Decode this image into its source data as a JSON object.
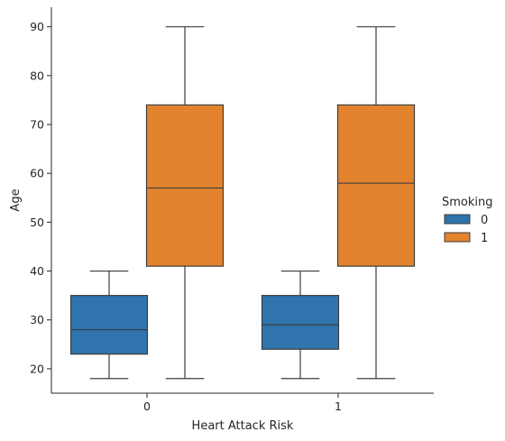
{
  "chart_data": {
    "type": "boxplot",
    "xlabel": "Heart Attack Risk",
    "ylabel": "Age",
    "categories": [
      "0",
      "1"
    ],
    "yticks": [
      20,
      30,
      40,
      50,
      60,
      70,
      80,
      90
    ],
    "ylim": [
      15,
      94
    ],
    "grid": false,
    "legend": {
      "title": "Smoking",
      "placement": "right",
      "entries": [
        {
          "label": "0",
          "color": "#2f74ad"
        },
        {
          "label": "1",
          "color": "#e3832e"
        }
      ]
    },
    "series": [
      {
        "hue": "0",
        "color": "#2f74ad",
        "boxes": [
          {
            "category": "0",
            "whisker_low": 18,
            "q1": 23,
            "median": 28,
            "q3": 35,
            "whisker_high": 40
          },
          {
            "category": "1",
            "whisker_low": 18,
            "q1": 24,
            "median": 29,
            "q3": 35,
            "whisker_high": 40
          }
        ]
      },
      {
        "hue": "1",
        "color": "#e3832e",
        "boxes": [
          {
            "category": "0",
            "whisker_low": 18,
            "q1": 41,
            "median": 57,
            "q3": 74,
            "whisker_high": 90
          },
          {
            "category": "1",
            "whisker_low": 18,
            "q1": 41,
            "median": 58,
            "q3": 74,
            "whisker_high": 90
          }
        ]
      }
    ]
  }
}
